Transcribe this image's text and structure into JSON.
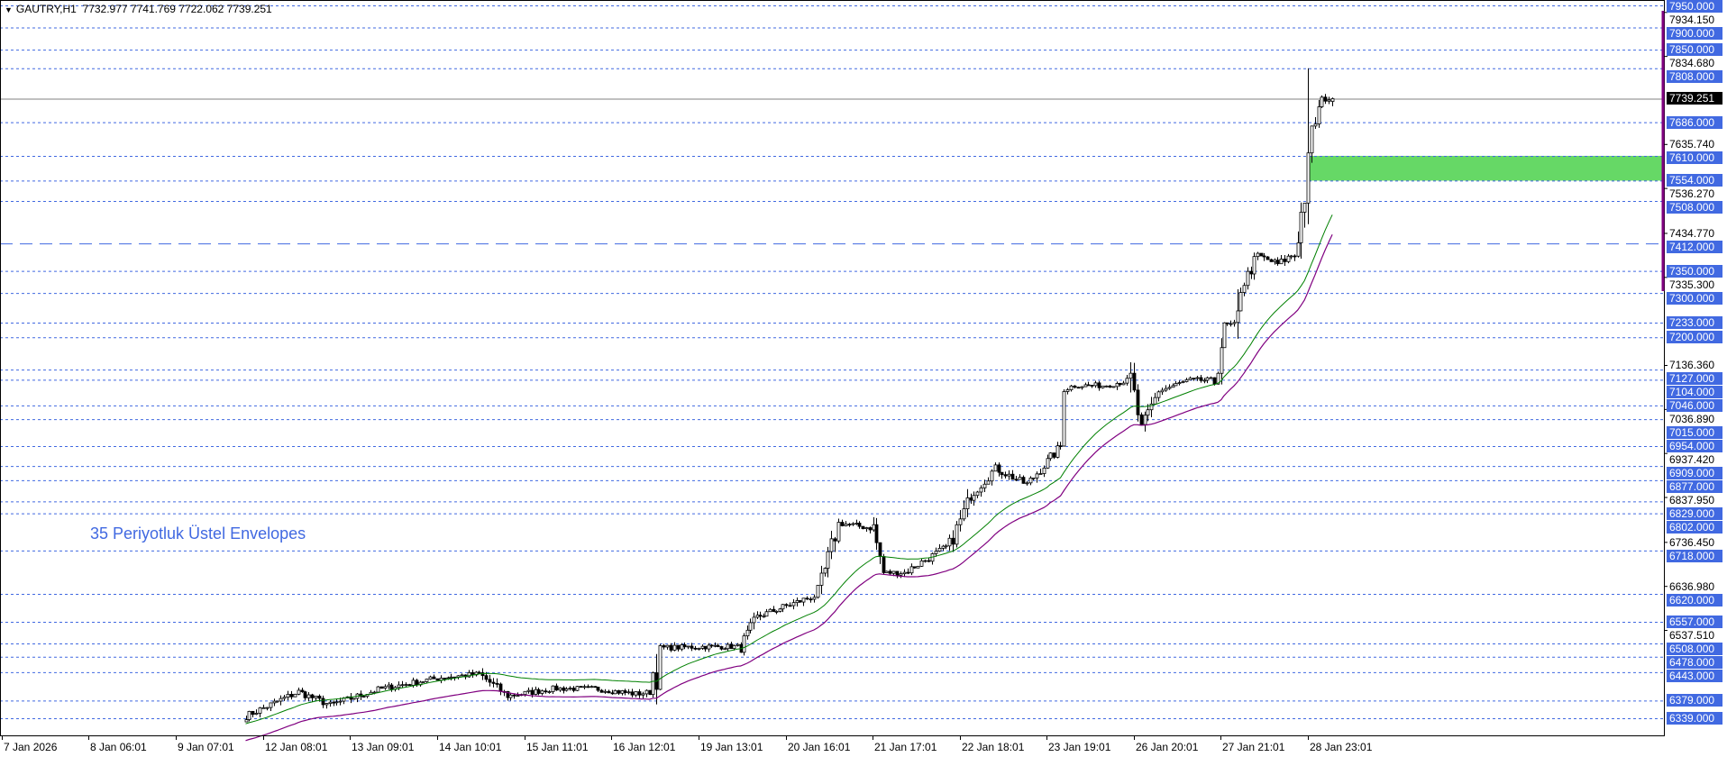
{
  "header": {
    "symbol_timeframe": "GAUTRY,H1",
    "ohlc": "7732.977 7741.769 7722.062 7739.251",
    "menu_icon": "triangle-down-icon"
  },
  "annotation": "35 Periyotluk Üstel Envelopes",
  "colors": {
    "level_line": "#4169e1",
    "envelope_upper": "#008000",
    "envelope_lower": "#800080",
    "zone_fill": "#66d866",
    "current_price_line": "#808080",
    "candle": "#000000"
  },
  "current_price": {
    "value": 7739.251,
    "label": "7739.251"
  },
  "zone": {
    "top": 7610.0,
    "bottom": 7554.0,
    "from": "2026-01-28T23:00Z"
  },
  "dashed_level": {
    "value": 7412.0,
    "label": "7412.000"
  },
  "levels": [
    {
      "value": 7950,
      "label": "7950.000"
    },
    {
      "value": 7900,
      "label": "7900.000"
    },
    {
      "value": 7850,
      "label": "7850.000"
    },
    {
      "value": 7808,
      "label": "7808.000"
    },
    {
      "value": 7686,
      "label": "7686.000"
    },
    {
      "value": 7610,
      "label": "7610.000"
    },
    {
      "value": 7554,
      "label": "7554.000"
    },
    {
      "value": 7508,
      "label": "7508.000"
    },
    {
      "value": 7350,
      "label": "7350.000"
    },
    {
      "value": 7300,
      "label": "7300.000"
    },
    {
      "value": 7233,
      "label": "7233.000"
    },
    {
      "value": 7200,
      "label": "7200.000"
    },
    {
      "value": 7127,
      "label": "7127.000"
    },
    {
      "value": 7104,
      "label": "7104.000"
    },
    {
      "value": 7046,
      "label": "7046.000"
    },
    {
      "value": 7015,
      "label": "7015.000"
    },
    {
      "value": 6954,
      "label": "6954.000"
    },
    {
      "value": 6909,
      "label": "6909.000"
    },
    {
      "value": 6877,
      "label": "6877.000"
    },
    {
      "value": 6829,
      "label": "6829.000"
    },
    {
      "value": 6802,
      "label": "6802.000"
    },
    {
      "value": 6718,
      "label": "6718.000"
    },
    {
      "value": 6620,
      "label": "6620.000"
    },
    {
      "value": 6557,
      "label": "6557.000"
    },
    {
      "value": 6508,
      "label": "6508.000"
    },
    {
      "value": 6478,
      "label": "6478.000"
    },
    {
      "value": 6443,
      "label": "6443.000"
    },
    {
      "value": 6379,
      "label": "6379.000"
    },
    {
      "value": 6339,
      "label": "6339.000"
    }
  ],
  "chart_data": {
    "type": "candlestick",
    "title": "",
    "y_ticks": [
      {
        "value": 7934.15,
        "label": "7934.150"
      },
      {
        "value": 7834.68,
        "label": "7834.680"
      },
      {
        "value": 7635.74,
        "label": "7635.740"
      },
      {
        "value": 7536.27,
        "label": "7536.270"
      },
      {
        "value": 7434.77,
        "label": "7434.770"
      },
      {
        "value": 7335.3,
        "label": "7335.300"
      },
      {
        "value": 7136.36,
        "label": "7136.360"
      },
      {
        "value": 7036.89,
        "label": "7036.890"
      },
      {
        "value": 6937.42,
        "label": "6937.420"
      },
      {
        "value": 6837.95,
        "label": "6837.950"
      },
      {
        "value": 6736.45,
        "label": "6736.450"
      },
      {
        "value": 6636.98,
        "label": "6636.980"
      },
      {
        "value": 6537.51,
        "label": "6537.510"
      }
    ],
    "ylim": [
      6300,
      7962
    ],
    "x_ticks": [
      {
        "t": "2026-01-07T00:00Z",
        "label": "7 Jan 2026"
      },
      {
        "t": "2026-01-08T06:01Z",
        "label": "8 Jan 06:01"
      },
      {
        "t": "2026-01-09T07:01Z",
        "label": "9 Jan 07:01"
      },
      {
        "t": "2026-01-12T08:01Z",
        "label": "12 Jan 08:01"
      },
      {
        "t": "2026-01-13T09:01Z",
        "label": "13 Jan 09:01"
      },
      {
        "t": "2026-01-14T10:01Z",
        "label": "14 Jan 10:01"
      },
      {
        "t": "2026-01-15T11:01Z",
        "label": "15 Jan 11:01"
      },
      {
        "t": "2026-01-16T12:01Z",
        "label": "16 Jan 12:01"
      },
      {
        "t": "2026-01-19T13:01Z",
        "label": "19 Jan 13:01"
      },
      {
        "t": "2026-01-20T16:01Z",
        "label": "20 Jan 16:01"
      },
      {
        "t": "2026-01-21T17:01Z",
        "label": "21 Jan 17:01"
      },
      {
        "t": "2026-01-22T18:01Z",
        "label": "22 Jan 18:01"
      },
      {
        "t": "2026-01-23T19:01Z",
        "label": "23 Jan 19:01"
      },
      {
        "t": "2026-01-26T20:01Z",
        "label": "26 Jan 20:01"
      },
      {
        "t": "2026-01-27T21:01Z",
        "label": "27 Jan 21:01"
      },
      {
        "t": "2026-01-28T23:01Z",
        "label": "28 Jan 23:01"
      }
    ],
    "envelope": {
      "period": 35,
      "method": "exponential",
      "deviation_pct": 0.3
    },
    "close_path": [
      {
        "t": "2026-01-12T03:00Z",
        "c": 6344
      },
      {
        "t": "2026-01-12T18:00Z",
        "c": 6399
      },
      {
        "t": "2026-01-13T03:00Z",
        "c": 6369
      },
      {
        "t": "2026-01-13T18:00Z",
        "c": 6406
      },
      {
        "t": "2026-01-14T11:00Z",
        "c": 6431
      },
      {
        "t": "2026-01-14T22:00Z",
        "c": 6439
      },
      {
        "t": "2026-01-15T06:00Z",
        "c": 6389
      },
      {
        "t": "2026-01-15T19:00Z",
        "c": 6406
      },
      {
        "t": "2026-01-16T07:00Z",
        "c": 6406
      },
      {
        "t": "2026-01-16T19:00Z",
        "c": 6394
      },
      {
        "t": "2026-01-19T01:00Z",
        "c": 6443
      },
      {
        "t": "2026-01-19T02:00Z",
        "c": 6498
      },
      {
        "t": "2026-01-19T15:00Z",
        "c": 6501
      },
      {
        "t": "2026-01-20T02:00Z",
        "c": 6501
      },
      {
        "t": "2026-01-20T07:00Z",
        "c": 6568
      },
      {
        "t": "2026-01-21T01:00Z",
        "c": 6618
      },
      {
        "t": "2026-01-21T07:00Z",
        "c": 6780
      },
      {
        "t": "2026-01-21T17:00Z",
        "c": 6768
      },
      {
        "t": "2026-01-21T20:00Z",
        "c": 6668
      },
      {
        "t": "2026-01-22T02:00Z",
        "c": 6668
      },
      {
        "t": "2026-01-22T15:00Z",
        "c": 6730
      },
      {
        "t": "2026-01-22T21:00Z",
        "c": 6842
      },
      {
        "t": "2026-01-23T04:00Z",
        "c": 6904
      },
      {
        "t": "2026-01-23T13:00Z",
        "c": 6867
      },
      {
        "t": "2026-01-23T23:00Z",
        "c": 6954
      },
      {
        "t": "2026-01-26T03:00Z",
        "c": 7091
      },
      {
        "t": "2026-01-26T11:00Z",
        "c": 7091
      },
      {
        "t": "2026-01-26T19:00Z",
        "c": 7103
      },
      {
        "t": "2026-01-26T22:00Z",
        "c": 6991
      },
      {
        "t": "2026-01-27T03:00Z",
        "c": 7079
      },
      {
        "t": "2026-01-27T12:00Z",
        "c": 7103
      },
      {
        "t": "2026-01-27T19:00Z",
        "c": 7103
      },
      {
        "t": "2026-01-27T22:00Z",
        "c": 7228
      },
      {
        "t": "2026-01-28T02:00Z",
        "c": 7228
      },
      {
        "t": "2026-01-28T03:00Z",
        "c": 7310
      },
      {
        "t": "2026-01-28T08:00Z",
        "c": 7385
      },
      {
        "t": "2026-01-28T14:00Z",
        "c": 7365
      },
      {
        "t": "2026-01-28T19:00Z",
        "c": 7390
      },
      {
        "t": "2026-01-28T23:00Z",
        "c": 7564
      },
      {
        "t": "2026-01-29T00:00Z",
        "c": 7664
      },
      {
        "t": "2026-01-29T03:00Z",
        "c": 7738
      },
      {
        "t": "2026-01-29T06:00Z",
        "c": 7739.251
      }
    ],
    "last_bar": {
      "open": 7732.977,
      "high": 7741.769,
      "low": 7722.062,
      "close": 7739.251
    },
    "max_high": 7808
  }
}
